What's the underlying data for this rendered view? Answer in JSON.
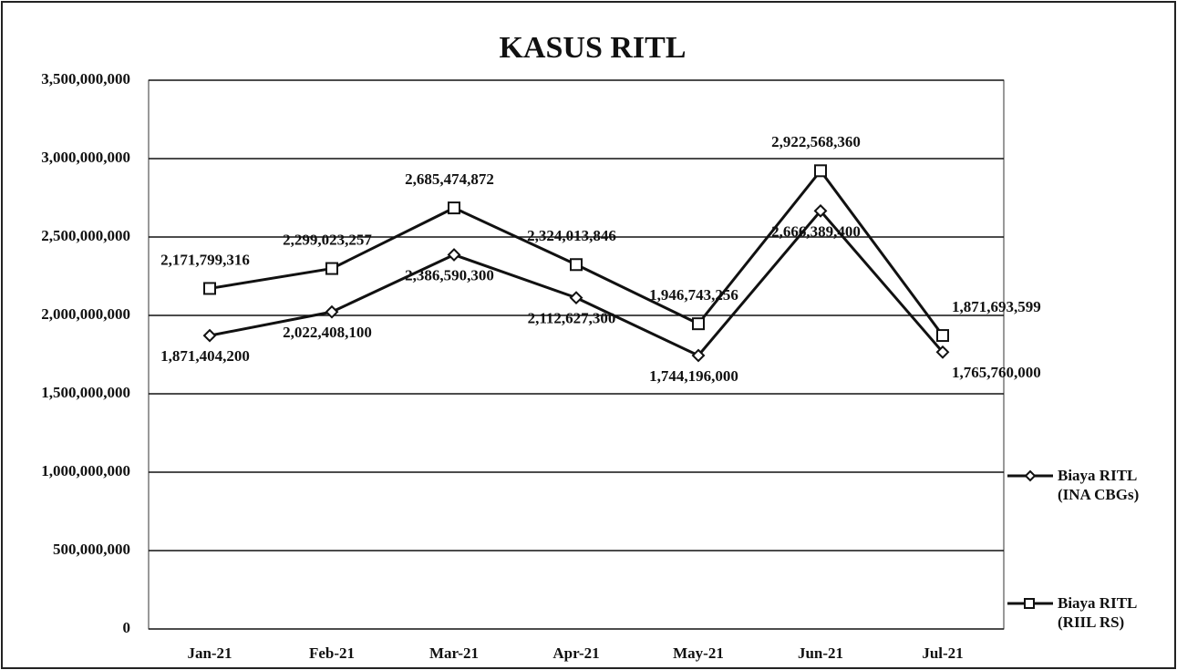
{
  "chart_data": {
    "type": "line",
    "title": "KASUS RITL",
    "categories": [
      "Jan-21",
      "Feb-21",
      "Mar-21",
      "Apr-21",
      "May-21",
      "Jun-21",
      "Jul-21"
    ],
    "series": [
      {
        "name": "Biaya RITL (INA CBGs)",
        "color": "#111111",
        "marker": "diamond",
        "values": [
          1871404200,
          2022408100,
          2386590300,
          2112627300,
          1744196000,
          2666389400,
          1765760000
        ],
        "value_labels": [
          "1,871,404,200",
          "2,022,408,100",
          "2,386,590,300",
          "2,112,627,300",
          "1,744,196,000",
          "2,666,389,400",
          "1,765,760,000"
        ]
      },
      {
        "name": "Biaya RITL (RIIL RS)",
        "color": "#111111",
        "marker": "square",
        "values": [
          2171799316,
          2299023257,
          2685474872,
          2324013846,
          1946743256,
          2922568360,
          1871693599
        ],
        "value_labels": [
          "2,171,799,316",
          "2,299,023,257",
          "2,685,474,872",
          "2,324,013,846",
          "1,946,743,256",
          "2,922,568,360",
          "1,871,693,599"
        ]
      }
    ],
    "ylim": [
      0,
      3500000000
    ],
    "yticks": [
      {
        "value": 0,
        "label": "0"
      },
      {
        "value": 500000000,
        "label": "500,000,000"
      },
      {
        "value": 1000000000,
        "label": "1,000,000,000"
      },
      {
        "value": 1500000000,
        "label": "1,500,000,000"
      },
      {
        "value": 2000000000,
        "label": "2,000,000,000"
      },
      {
        "value": 2500000000,
        "label": "2,500,000,000"
      },
      {
        "value": 3000000000,
        "label": "3,000,000,000"
      },
      {
        "value": 3500000000,
        "label": "3,500,000,000"
      }
    ],
    "grid": true
  }
}
